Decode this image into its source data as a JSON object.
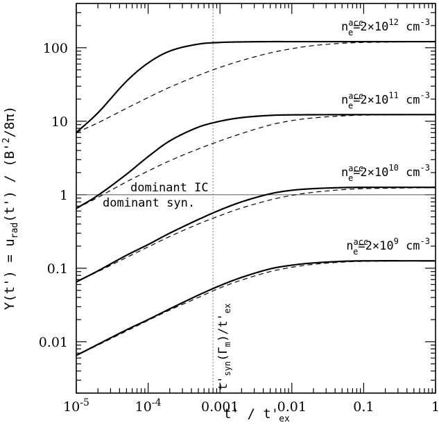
{
  "chart_data": {
    "type": "line",
    "title": "",
    "xlabel": "t' / t'ex",
    "ylabel": "Y(t') = urad(t') / (B'²/8π)",
    "xscale": "log",
    "yscale": "log",
    "xlim": [
      1e-05,
      1
    ],
    "ylim": [
      0.002,
      400
    ],
    "grid": false,
    "x_tick_labels": [
      "10-5",
      "10-4",
      "0.001",
      "0.01",
      "0.1",
      "1"
    ],
    "y_tick_labels": [
      "0.01",
      "0.1",
      "1",
      "10",
      "100"
    ],
    "reference_lines": [
      {
        "orientation": "horizontal",
        "value": 1,
        "label_above": "dominant IC",
        "label_below": "dominant syn."
      },
      {
        "orientation": "vertical",
        "value": 0.0008,
        "label": "t'syn(Γm)/t'ex"
      }
    ],
    "series": [
      {
        "label": "ne acc = 2×10^12 cm^-3",
        "linestyle": "solid",
        "x": [
          1e-05,
          2e-05,
          5e-05,
          0.0001,
          0.0002,
          0.0005,
          0.001,
          0.002,
          0.005,
          0.01,
          0.1,
          1
        ],
        "values": [
          7,
          13,
          35,
          62,
          90,
          112,
          118,
          120,
          121,
          121,
          121,
          121
        ]
      },
      {
        "label": "ne acc = 2×10^12 cm^-3",
        "linestyle": "dashed",
        "x": [
          1e-05,
          2e-05,
          5e-05,
          0.0001,
          0.0002,
          0.0005,
          0.001,
          0.002,
          0.005,
          0.01,
          0.02,
          0.05,
          0.1,
          1
        ],
        "values": [
          7,
          9.5,
          15,
          21,
          29,
          42,
          54,
          67,
          85,
          97,
          107,
          115,
          118,
          121
        ]
      },
      {
        "label": "ne acc = 2×10^11 cm^-3",
        "linestyle": "solid",
        "x": [
          1e-05,
          2e-05,
          5e-05,
          0.0001,
          0.0002,
          0.0005,
          0.001,
          0.002,
          0.005,
          0.01,
          0.1,
          1
        ],
        "values": [
          0.65,
          0.98,
          1.9,
          3.3,
          5.4,
          8.3,
          10,
          11.2,
          12,
          12.2,
          12.3,
          12.3
        ]
      },
      {
        "label": "ne acc = 2×10^11 cm^-3",
        "linestyle": "dashed",
        "x": [
          1e-05,
          2e-05,
          5e-05,
          0.0001,
          0.0002,
          0.0005,
          0.001,
          0.002,
          0.005,
          0.01,
          0.02,
          0.05,
          0.1,
          1
        ],
        "values": [
          0.65,
          0.92,
          1.5,
          2.1,
          2.9,
          4.2,
          5.4,
          6.8,
          8.9,
          10.2,
          11.1,
          11.8,
          12.1,
          12.3
        ]
      },
      {
        "label": "ne acc = 2×10^10 cm^-3",
        "linestyle": "solid",
        "x": [
          1e-05,
          2e-05,
          5e-05,
          0.0001,
          0.0002,
          0.0005,
          0.001,
          0.002,
          0.005,
          0.01,
          0.02,
          0.05,
          0.1,
          1
        ],
        "values": [
          0.065,
          0.092,
          0.15,
          0.21,
          0.3,
          0.46,
          0.62,
          0.8,
          1.03,
          1.15,
          1.21,
          1.25,
          1.26,
          1.26
        ]
      },
      {
        "label": "ne acc = 2×10^10 cm^-3",
        "linestyle": "dashed",
        "x": [
          1e-05,
          2e-05,
          5e-05,
          0.0001,
          0.0002,
          0.0005,
          0.001,
          0.002,
          0.005,
          0.01,
          0.02,
          0.05,
          0.1,
          1
        ],
        "values": [
          0.065,
          0.09,
          0.14,
          0.195,
          0.27,
          0.4,
          0.52,
          0.66,
          0.85,
          0.98,
          1.08,
          1.17,
          1.21,
          1.25
        ]
      },
      {
        "label": "ne acc = 2×10^9 cm^-3",
        "linestyle": "solid",
        "x": [
          1e-05,
          2e-05,
          5e-05,
          0.0001,
          0.0002,
          0.0005,
          0.001,
          0.002,
          0.005,
          0.01,
          0.02,
          0.05,
          0.1,
          1
        ],
        "values": [
          0.0065,
          0.0092,
          0.0145,
          0.02,
          0.028,
          0.043,
          0.058,
          0.075,
          0.098,
          0.11,
          0.118,
          0.124,
          0.126,
          0.126
        ]
      },
      {
        "label": "ne acc = 2×10^9 cm^-3",
        "linestyle": "dashed",
        "x": [
          1e-05,
          2e-05,
          5e-05,
          0.0001,
          0.0002,
          0.0005,
          0.001,
          0.002,
          0.005,
          0.01,
          0.02,
          0.05,
          0.1,
          1
        ],
        "values": [
          0.0065,
          0.009,
          0.014,
          0.0195,
          0.027,
          0.04,
          0.054,
          0.069,
          0.09,
          0.103,
          0.113,
          0.121,
          0.124,
          0.126
        ]
      }
    ],
    "curve_labels": [
      {
        "mantissa": "n",
        "subscript": "e",
        "superscript": "acc",
        "text": "=2×10",
        "exponent": "12",
        "unit": " cm",
        "unit_exp": "-3",
        "anchor_y": 121
      },
      {
        "mantissa": "n",
        "subscript": "e",
        "superscript": "acc",
        "text": "=2×10",
        "exponent": "11",
        "unit": " cm",
        "unit_exp": "-3",
        "anchor_y": 12.3
      },
      {
        "mantissa": "n",
        "subscript": "e",
        "superscript": "acc",
        "text": "=2×10",
        "exponent": "10",
        "unit": " cm",
        "unit_exp": "-3",
        "anchor_y": 1.26
      },
      {
        "mantissa": "n",
        "subscript": "e",
        "superscript": "acc",
        "text": "=2×10",
        "exponent": "9",
        "unit": " cm",
        "unit_exp": "-3",
        "anchor_y": 0.126
      }
    ]
  }
}
